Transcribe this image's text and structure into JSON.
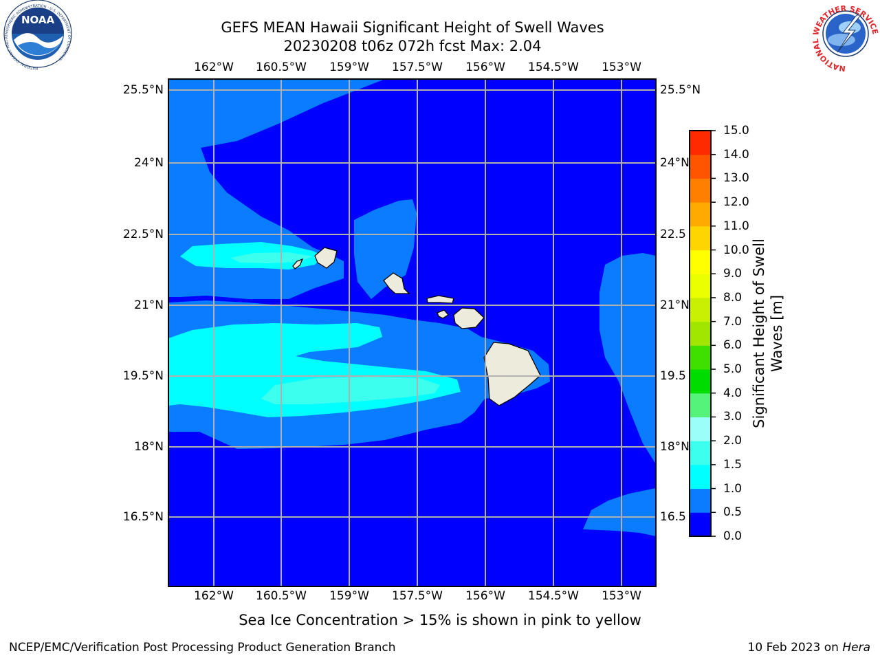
{
  "title": {
    "line1": "GEFS MEAN Hawaii Significant Height of Swell Waves",
    "line2": "20230208 t06z 072h fcst   Max: 2.04"
  },
  "map": {
    "lon_labels": [
      "162°W",
      "160.5°W",
      "159°W",
      "157.5°W",
      "156°W",
      "154.5°W",
      "153°W"
    ],
    "lat_labels": [
      "25.5°N",
      "24°N",
      "22.5°N",
      "21°N",
      "19.5°N",
      "18°N",
      "16.5°N"
    ],
    "lat_labels_right": [
      "25.5°N",
      "24°N",
      "22.5",
      "21°N",
      "19.5",
      "18°N",
      "16.5"
    ],
    "ocean_color": "#0000ff",
    "land_color": "#ecebdc"
  },
  "colorbar": {
    "label": "Significant Height of Swell Waves [m]",
    "ticks": [
      "0.0",
      "0.5",
      "1.0",
      "1.5",
      "2.0",
      "3.0",
      "4.0",
      "5.0",
      "6.0",
      "7.0",
      "8.0",
      "9.0",
      "10.0",
      "11.0",
      "12.0",
      "13.0",
      "14.0",
      "15.0"
    ],
    "colors": [
      "#0000ff",
      "#0a7cff",
      "#00ffff",
      "#3dffee",
      "#9bfff7",
      "#55f37a",
      "#00db00",
      "#3fe000",
      "#a0e600",
      "#c8f000",
      "#eaff00",
      "#ffff00",
      "#ffd500",
      "#ffaa00",
      "#ff8000",
      "#ff5500",
      "#ff2a00",
      "#ff0000"
    ]
  },
  "logos": {
    "noaa_text": "NOAA",
    "noaa_ring": "NATIONAL OCEANIC AND ATMOSPHERIC ADMINISTRATION · U.S. DEPARTMENT OF COMMERCE",
    "nws_ring": "NATIONAL WEATHER SERVICE"
  },
  "footer": {
    "note": "Sea Ice Concentration > 15% is shown in pink to yellow",
    "left": "NCEP/EMC/Verification Post Processing Product Generation Branch",
    "right_date": "10 Feb 2023 on ",
    "right_host": "Hera"
  }
}
